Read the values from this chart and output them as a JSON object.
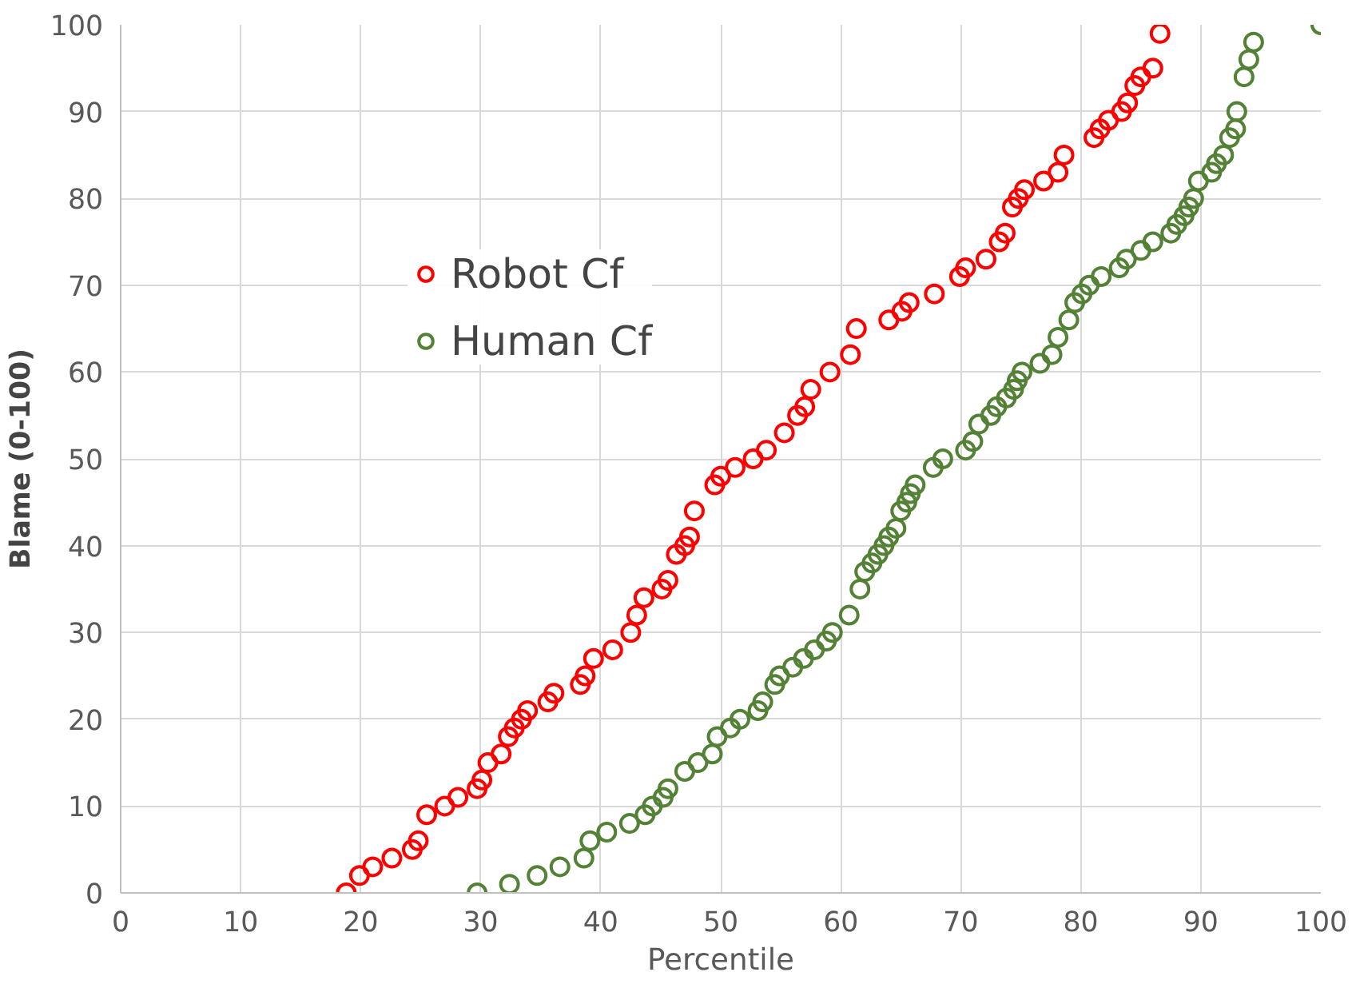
{
  "chart_data": {
    "type": "scatter",
    "xlabel": "Percentile",
    "ylabel": "Blame (0-100)",
    "xlim": [
      0,
      100
    ],
    "ylim": [
      0,
      100
    ],
    "xticks": [
      0,
      10,
      20,
      30,
      40,
      50,
      60,
      70,
      80,
      90,
      100
    ],
    "yticks": [
      0,
      10,
      20,
      30,
      40,
      50,
      60,
      70,
      80,
      90,
      100
    ],
    "grid": true,
    "legend": "top left",
    "marker": "circle",
    "series": [
      {
        "name": "Robot Cf",
        "color": "#ff0000",
        "x": [
          18.8,
          19.9,
          21,
          22.6,
          24.3,
          24.8,
          25.5,
          27,
          28.1,
          29.7,
          30.1,
          30.6,
          31.7,
          32.3,
          32.8,
          33.4,
          33.9,
          35.6,
          36.1,
          38.3,
          38.7,
          39.4,
          41,
          42.5,
          43,
          43.6,
          45.1,
          45.6,
          46.3,
          47,
          47.4,
          47.8,
          49.5,
          50,
          51.2,
          52.7,
          53.8,
          55.3,
          56.4,
          57,
          57.5,
          59.1,
          60.8,
          61.3,
          64,
          65.1,
          65.7,
          67.8,
          69.9,
          70.4,
          72.1,
          73.2,
          73.7,
          74.3,
          74.8,
          75.3,
          76.9,
          78.1,
          78.6,
          81.1,
          81.6,
          82.3,
          83.4,
          83.9,
          84.5,
          85,
          86,
          86.6
        ],
        "values": [
          0,
          2,
          3,
          4,
          5,
          6,
          9,
          10,
          11,
          12,
          13,
          15,
          16,
          18,
          19,
          20,
          21,
          22,
          23,
          24,
          25,
          27,
          28,
          30,
          32,
          34,
          35,
          36,
          39,
          40,
          41,
          44,
          47,
          48,
          49,
          50,
          51,
          53,
          55,
          56,
          58,
          60,
          62,
          65,
          66,
          67,
          68,
          69,
          71,
          72,
          73,
          75,
          76,
          79,
          80,
          81,
          82,
          83,
          85,
          87,
          88,
          89,
          90,
          91,
          93,
          94,
          95,
          99
        ]
      },
      {
        "name": "Human Cf",
        "color": "#538135",
        "x": [
          29.7,
          32.4,
          34.7,
          36.6,
          38.6,
          39.1,
          40.5,
          42.4,
          43.7,
          44.3,
          45.2,
          45.6,
          47,
          48.1,
          49.3,
          49.7,
          50.8,
          51.6,
          53.1,
          53.5,
          54.5,
          54.9,
          56,
          56.9,
          57.8,
          58.8,
          59.3,
          60.7,
          61.6,
          62,
          62.6,
          63.1,
          63.6,
          64,
          64.6,
          65,
          65.5,
          65.8,
          66.2,
          67.7,
          68.5,
          70.4,
          71,
          71.5,
          72.5,
          73,
          73.8,
          74.4,
          74.7,
          75.1,
          76.6,
          77.6,
          78.1,
          79,
          79.5,
          80.1,
          80.7,
          81.7,
          83.2,
          83.8,
          85,
          86,
          87.5,
          88,
          88.6,
          89,
          89.4,
          89.8,
          90.9,
          91.3,
          91.9,
          92.4,
          92.9,
          93,
          93.6,
          94,
          94.4,
          100
        ],
        "values": [
          0,
          1,
          2,
          3,
          4,
          6,
          7,
          8,
          9,
          10,
          11,
          12,
          14,
          15,
          16,
          18,
          19,
          20,
          21,
          22,
          24,
          25,
          26,
          27,
          28,
          29,
          30,
          32,
          35,
          37,
          38,
          39,
          40,
          41,
          42,
          44,
          45,
          46,
          47,
          49,
          50,
          51,
          52,
          54,
          55,
          56,
          57,
          58,
          59,
          60,
          61,
          62,
          64,
          66,
          68,
          69,
          70,
          71,
          72,
          73,
          74,
          75,
          76,
          77,
          78,
          79,
          80,
          82,
          83,
          84,
          85,
          87,
          88,
          90,
          94,
          96,
          98,
          100
        ]
      }
    ]
  }
}
